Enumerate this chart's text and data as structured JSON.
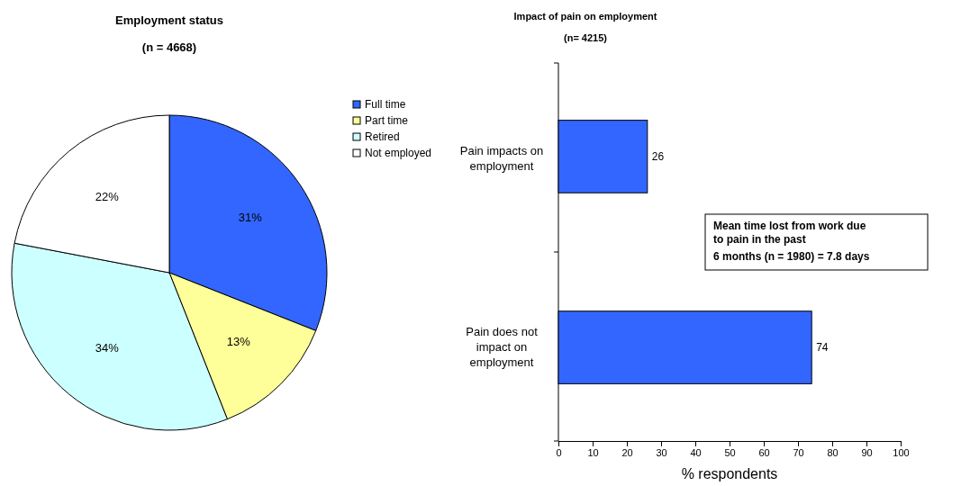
{
  "chart_data": [
    {
      "type": "pie",
      "title": "Employment status",
      "subtitle": "(n = 4668)",
      "categories": [
        "Full time",
        "Part time",
        "Retired",
        "Not employed"
      ],
      "values": [
        31,
        13,
        34,
        22
      ],
      "colors": [
        "#3366ff",
        "#ffff99",
        "#ccffff",
        "#ffffff"
      ],
      "value_labels": [
        "31%",
        "13%",
        "34%",
        "22%"
      ],
      "legend": "top right"
    },
    {
      "type": "bar",
      "orientation": "horizontal",
      "title": "Impact of pain on employment",
      "subtitle": "(n= 4215)",
      "categories": [
        "Pain impacts on employment",
        "Pain does not impact on employment"
      ],
      "values": [
        26,
        74
      ],
      "color": "#3366ff",
      "xlim": [
        0,
        100
      ],
      "xticks": [
        0,
        10,
        20,
        30,
        40,
        50,
        60,
        70,
        80,
        90,
        100
      ],
      "xlabel": "% respondents",
      "data_labels": true,
      "annotations": [
        "Mean time lost from work due\nto pain in the past\n6 months (n = 1980) = 7.8 days"
      ]
    }
  ]
}
